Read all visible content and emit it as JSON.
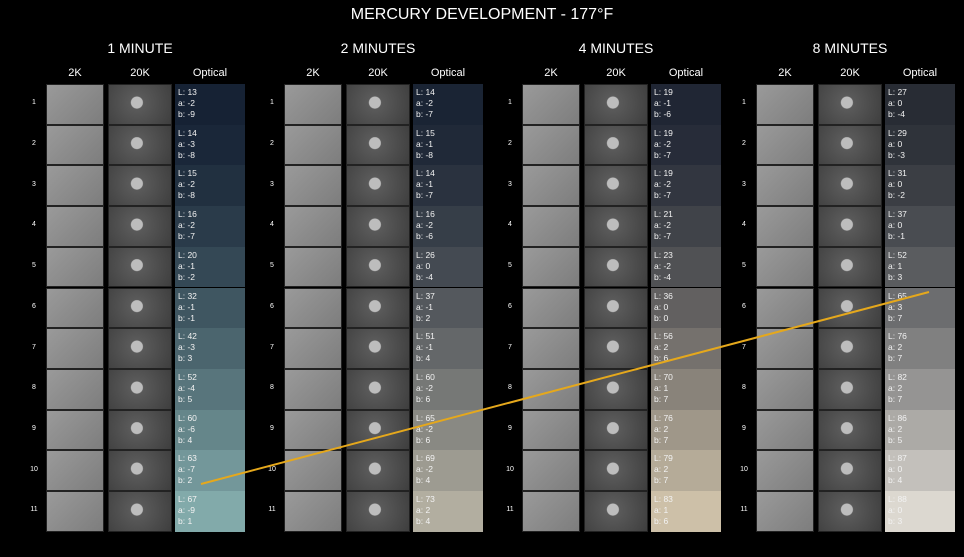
{
  "title": "MERCURY DEVELOPMENT - 177°F",
  "column_headers": [
    "2K",
    "20K",
    "Optical"
  ],
  "row_labels": [
    "1",
    "2",
    "3",
    "4",
    "5",
    "6",
    "7",
    "8",
    "9",
    "10",
    "11"
  ],
  "panels": [
    {
      "title": "1 MINUTE",
      "rows": [
        [
          "L: 13",
          "a: -2",
          "b: -9"
        ],
        [
          "L: 14",
          "a: -3",
          "b: -8"
        ],
        [
          "L: 15",
          "a: -2",
          "b: -8"
        ],
        [
          "L: 16",
          "a: -2",
          "b: -7"
        ],
        [
          "L: 20",
          "a: -1",
          "b: -2"
        ],
        [
          "L: 32",
          "a: -1",
          "b: -1"
        ],
        [
          "L: 42",
          "a: -3",
          "b: 3"
        ],
        [
          "L: 52",
          "a: -4",
          "b: 5"
        ],
        [
          "L: 60",
          "a: -6",
          "b: 4"
        ],
        [
          "L: 63",
          "a: -7",
          "b: 2"
        ],
        [
          "L: 67",
          "a: -9",
          "b: 1"
        ]
      ]
    },
    {
      "title": "2 MINUTES",
      "rows": [
        [
          "L: 14",
          "a: -2",
          "b: -7"
        ],
        [
          "L: 15",
          "a: -1",
          "b: -8"
        ],
        [
          "L: 14",
          "a: -1",
          "b: -7"
        ],
        [
          "L: 16",
          "a: -2",
          "b: -6"
        ],
        [
          "L: 26",
          "a: 0",
          "b: -4"
        ],
        [
          "L: 37",
          "a: -1",
          "b: 2"
        ],
        [
          "L: 51",
          "a: -1",
          "b: 4"
        ],
        [
          "L: 60",
          "a: -2",
          "b: 6"
        ],
        [
          "L: 65",
          "a: -2",
          "b: 6"
        ],
        [
          "L: 69",
          "a: -2",
          "b: 4"
        ],
        [
          "L: 73",
          "a: 2",
          "b: 4"
        ]
      ]
    },
    {
      "title": "4 MINUTES",
      "rows": [
        [
          "L: 19",
          "a: -1",
          "b: -6"
        ],
        [
          "L: 19",
          "a: -2",
          "b: -7"
        ],
        [
          "L: 19",
          "a: -2",
          "b: -7"
        ],
        [
          "L: 21",
          "a: -2",
          "b: -7"
        ],
        [
          "L: 23",
          "a: -2",
          "b: -4"
        ],
        [
          "L: 36",
          "a: 0",
          "b: 0"
        ],
        [
          "L: 56",
          "a: 2",
          "b: 6"
        ],
        [
          "L: 70",
          "a: 1",
          "b: 7"
        ],
        [
          "L: 76",
          "a: 2",
          "b: 7"
        ],
        [
          "L: 79",
          "a: 2",
          "b: 7"
        ],
        [
          "L: 83",
          "a: 1",
          "b: 6"
        ]
      ]
    },
    {
      "title": "8 MINUTES",
      "rows": [
        [
          "L: 27",
          "a: 0",
          "b: -4"
        ],
        [
          "L: 29",
          "a: 0",
          "b: -3"
        ],
        [
          "L: 31",
          "a: 0",
          "b: -2"
        ],
        [
          "L: 37",
          "a: 0",
          "b: -1"
        ],
        [
          "L: 52",
          "a: 1",
          "b: 3"
        ],
        [
          "L: 65",
          "a: 3",
          "b: 7"
        ],
        [
          "L: 76",
          "a: 2",
          "b: 7"
        ],
        [
          "L: 82",
          "a: 2",
          "b: 7"
        ],
        [
          "L: 86",
          "a: 2",
          "b: 5"
        ],
        [
          "L: 87",
          "a: 0",
          "b: 4"
        ],
        [
          "L: 88",
          "a: 0",
          "b: 3"
        ]
      ]
    }
  ]
}
